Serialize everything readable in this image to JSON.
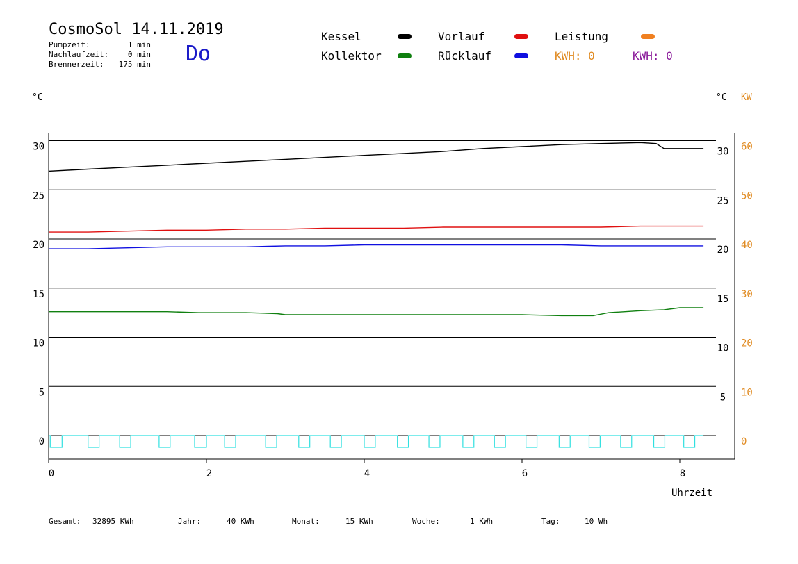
{
  "header": {
    "title": "CosmoSol 14.11.2019",
    "info": [
      {
        "label": "Pumpzeit:",
        "value": "1 min"
      },
      {
        "label": "Nachlaufzeit:",
        "value": "0 min"
      },
      {
        "label": "Brennerzeit:",
        "value": "175 min"
      }
    ],
    "weekday": "Do"
  },
  "legend": {
    "kessel": {
      "label": "Kessel",
      "color": "#000000"
    },
    "vorlauf": {
      "label": "Vorlauf",
      "color": "#e01010"
    },
    "leistung": {
      "label": "Leistung",
      "color": "#f08020"
    },
    "kollektor": {
      "label": "Kollektor",
      "color": "#108010"
    },
    "ruecklauf": {
      "label": "Rücklauf",
      "color": "#1010e0"
    },
    "kwh1": {
      "label": "KWH: 0",
      "color": "#e08a20"
    },
    "kwh2": {
      "label": "KWH: 0",
      "color": "#8a1a9a"
    }
  },
  "units": {
    "left": "°C",
    "right_c": "°C",
    "right_kw": "KW"
  },
  "footer": [
    {
      "label": "Gesamt:",
      "value": "32895 KWh"
    },
    {
      "label": "Jahr:",
      "value": "40 KWh"
    },
    {
      "label": "Monat:",
      "value": "15 KWh"
    },
    {
      "label": "Woche:",
      "value": "1 KWh"
    },
    {
      "label": "Tag:",
      "value": "10 Wh"
    }
  ],
  "chart_data": {
    "type": "line",
    "xlabel": "Uhrzeit",
    "xlim": [
      0,
      8.7
    ],
    "ylim": [
      -2.5,
      31
    ],
    "y_ticks": [
      0,
      5,
      10,
      15,
      20,
      25,
      30
    ],
    "y_right_ticks": [
      5,
      10,
      15,
      20,
      25,
      30
    ],
    "kw_ticks": [
      0,
      10,
      20,
      30,
      40,
      50,
      60
    ],
    "x_ticks": [
      0,
      2,
      4,
      6,
      8
    ],
    "grid": true,
    "series": [
      {
        "name": "Kessel",
        "color": "#000000",
        "x": [
          0,
          0.5,
          1,
          1.5,
          2,
          2.5,
          3,
          3.5,
          4,
          4.5,
          5,
          5.5,
          6,
          6.5,
          7,
          7.5,
          7.7,
          7.8,
          8.0,
          8.3
        ],
        "y": [
          26.9,
          27.1,
          27.3,
          27.5,
          27.7,
          27.9,
          28.1,
          28.3,
          28.5,
          28.7,
          28.9,
          29.2,
          29.4,
          29.6,
          29.7,
          29.8,
          29.7,
          29.2,
          29.2,
          29.2
        ]
      },
      {
        "name": "Vorlauf",
        "color": "#e01010",
        "x": [
          0,
          0.5,
          1,
          1.5,
          2,
          2.5,
          3,
          3.5,
          4,
          4.5,
          5,
          5.5,
          6,
          6.5,
          7,
          7.5,
          8,
          8.3
        ],
        "y": [
          20.7,
          20.7,
          20.8,
          20.9,
          20.9,
          21.0,
          21.0,
          21.1,
          21.1,
          21.1,
          21.2,
          21.2,
          21.2,
          21.2,
          21.2,
          21.3,
          21.3,
          21.3
        ]
      },
      {
        "name": "Rücklauf",
        "color": "#1010e0",
        "x": [
          0,
          0.5,
          1,
          1.5,
          2,
          2.5,
          3,
          3.5,
          4,
          4.5,
          5,
          5.5,
          6,
          6.5,
          7,
          7.5,
          8,
          8.3
        ],
        "y": [
          19.0,
          19.0,
          19.1,
          19.2,
          19.2,
          19.2,
          19.3,
          19.3,
          19.4,
          19.4,
          19.4,
          19.4,
          19.4,
          19.4,
          19.3,
          19.3,
          19.3,
          19.3
        ]
      },
      {
        "name": "Kollektor",
        "color": "#108010",
        "x": [
          0,
          0.5,
          1,
          1.5,
          1.9,
          2.0,
          2.5,
          2.9,
          3.0,
          3.5,
          4.0,
          4.5,
          5.0,
          5.5,
          6.0,
          6.5,
          6.9,
          7.1,
          7.5,
          7.8,
          7.9,
          8.0,
          8.3
        ],
        "y": [
          12.6,
          12.6,
          12.6,
          12.6,
          12.5,
          12.5,
          12.5,
          12.4,
          12.3,
          12.3,
          12.3,
          12.3,
          12.3,
          12.3,
          12.3,
          12.2,
          12.2,
          12.5,
          12.7,
          12.8,
          12.9,
          13.0,
          13.0
        ]
      },
      {
        "name": "Leistung",
        "color": "#30e0e0",
        "pulses": [
          [
            0.02,
            0.17
          ],
          [
            0.5,
            0.64
          ],
          [
            0.9,
            1.04
          ],
          [
            1.4,
            1.54
          ],
          [
            1.85,
            2.0
          ],
          [
            2.23,
            2.37
          ],
          [
            2.75,
            2.89
          ],
          [
            3.17,
            3.31
          ],
          [
            3.57,
            3.71
          ],
          [
            4.0,
            4.14
          ],
          [
            4.42,
            4.56
          ],
          [
            4.82,
            4.96
          ],
          [
            5.25,
            5.39
          ],
          [
            5.65,
            5.79
          ],
          [
            6.05,
            6.19
          ],
          [
            6.47,
            6.61
          ],
          [
            6.85,
            6.99
          ],
          [
            7.25,
            7.39
          ],
          [
            7.67,
            7.81
          ],
          [
            8.05,
            8.19
          ]
        ],
        "pulse_depth": -1.2,
        "end": 8.3
      }
    ]
  }
}
